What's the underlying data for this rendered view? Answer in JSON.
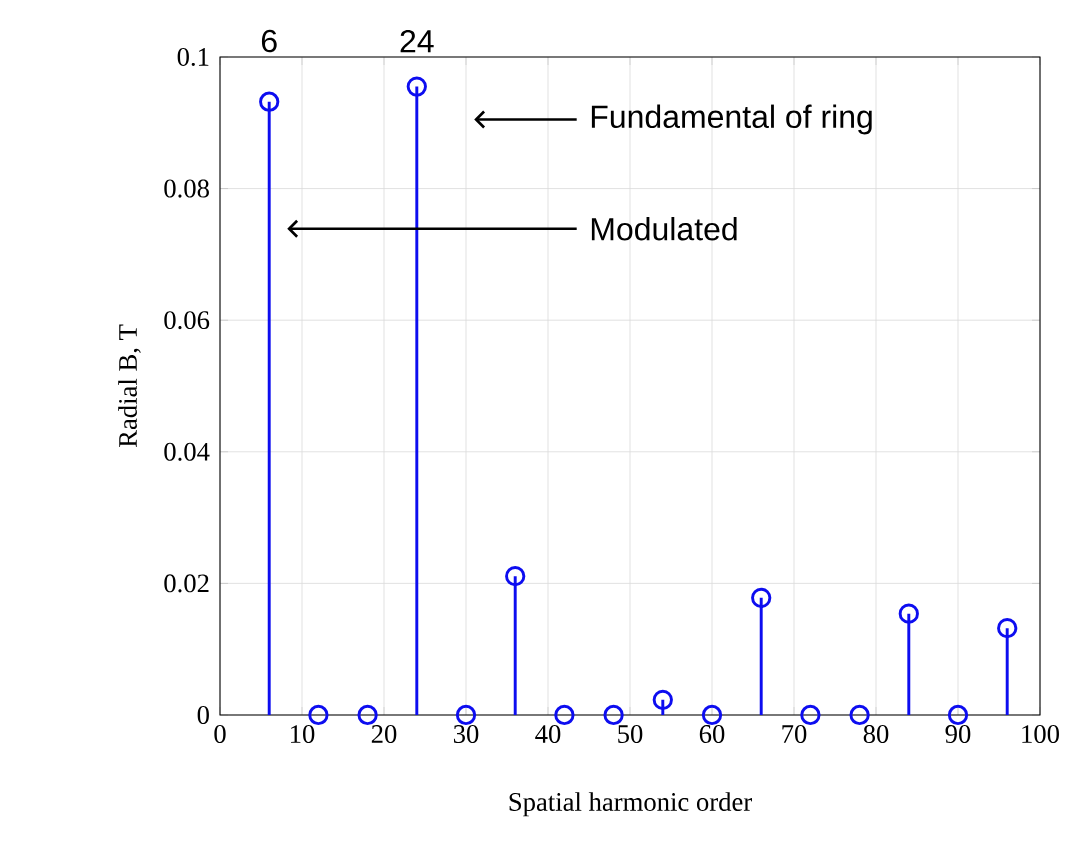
{
  "chart_data": {
    "type": "lollipop",
    "xlabel": "Spatial harmonic order",
    "ylabel": "Radial B, T",
    "x": [
      6,
      12,
      18,
      24,
      30,
      36,
      42,
      48,
      54,
      60,
      66,
      72,
      78,
      84,
      90,
      96
    ],
    "series": [
      {
        "color": "#0d0df0",
        "values": [
          0.0932,
          0,
          0,
          0.0955,
          0,
          0.0211,
          0,
          0,
          0.0023,
          0,
          0.0178,
          0,
          0,
          0.0154,
          0,
          0.0132
        ]
      }
    ],
    "xlim": [
      0,
      100
    ],
    "xticks": [
      0,
      10,
      20,
      30,
      40,
      50,
      60,
      70,
      80,
      90,
      100
    ],
    "ylim": [
      0,
      0.1
    ],
    "yticks": [
      0,
      0.02,
      0.04,
      0.06,
      0.08,
      0.1
    ],
    "grid": true,
    "marker": "circle",
    "annotations": [
      "6",
      "24",
      "Fundamental of ring",
      "Modulated"
    ]
  }
}
